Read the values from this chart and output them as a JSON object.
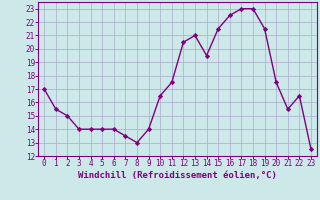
{
  "x": [
    0,
    1,
    2,
    3,
    4,
    5,
    6,
    7,
    8,
    9,
    10,
    11,
    12,
    13,
    14,
    15,
    16,
    17,
    18,
    19,
    20,
    21,
    22,
    23
  ],
  "y": [
    17,
    15.5,
    15,
    14,
    14,
    14,
    14,
    13.5,
    13,
    14,
    16.5,
    17.5,
    20.5,
    21,
    19.5,
    21.5,
    22.5,
    23,
    23,
    21.5,
    17.5,
    15.5,
    16.5,
    12.5
  ],
  "line_color": "#800080",
  "marker": "D",
  "marker_size": 2.2,
  "bg_color": "#cce8e8",
  "grid_color": "#aaaacc",
  "xlabel": "Windchill (Refroidissement éolien,°C)",
  "xlabel_color": "#800080",
  "xlabel_fontsize": 6.5,
  "tick_fontsize": 5.5,
  "ylim": [
    12,
    23.5
  ],
  "yticks": [
    12,
    13,
    14,
    15,
    16,
    17,
    18,
    19,
    20,
    21,
    22,
    23
  ],
  "xticks": [
    0,
    1,
    2,
    3,
    4,
    5,
    6,
    7,
    8,
    9,
    10,
    11,
    12,
    13,
    14,
    15,
    16,
    17,
    18,
    19,
    20,
    21,
    22,
    23
  ],
  "xtick_labels": [
    "0",
    "1",
    "2",
    "3",
    "4",
    "5",
    "6",
    "7",
    "8",
    "9",
    "10",
    "11",
    "12",
    "13",
    "14",
    "15",
    "16",
    "17",
    "18",
    "19",
    "20",
    "21",
    "22",
    "23"
  ],
  "line_width": 1.0
}
